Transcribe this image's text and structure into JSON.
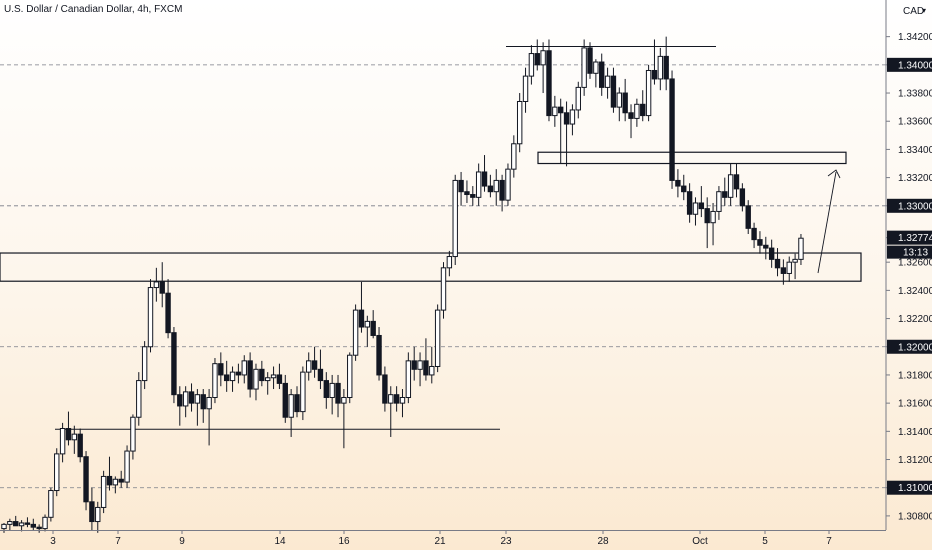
{
  "header": {
    "title": "U.S. Dollar / Canadian Dollar, 4h, FXCM",
    "currency": "CAD"
  },
  "colors": {
    "candle": "#131722",
    "grid": "#787b86",
    "axis_line": "#787b86",
    "label_box": "#131722",
    "label_text": "#ffffff",
    "axis_text": "#131722"
  },
  "chart_data": {
    "type": "candlestick",
    "price_axis_labels": [
      "1.34200",
      "1.34000",
      "1.33800",
      "1.33600",
      "1.33400",
      "1.33200",
      "1.33000",
      "1.32774",
      "1.32600",
      "1.32400",
      "1.32200",
      "1.32000",
      "1.31800",
      "1.31600",
      "1.31400",
      "1.31200",
      "1.31000",
      "1.30800"
    ],
    "highlighted_labels": [
      {
        "text": "1.34000",
        "value": 1.34
      },
      {
        "text": "1.33000",
        "value": 1.33
      },
      {
        "text": "1.32774",
        "value": 1.32774
      },
      {
        "text": "1.32000",
        "value": 1.32
      },
      {
        "text": "1.31000",
        "value": 1.31
      }
    ],
    "current_price": 1.32774,
    "countdown": "13:13",
    "dashed_levels": [
      1.34,
      1.33,
      1.32,
      1.31
    ],
    "date_ticks": [
      "3",
      "7",
      "9",
      "14",
      "16",
      "21",
      "23",
      "28",
      "Oct",
      "5",
      "7"
    ],
    "y_range": [
      1.307,
      1.3446
    ],
    "candles": [
      [
        1.3071,
        1.3075,
        1.3068,
        1.3074
      ],
      [
        1.3074,
        1.3078,
        1.307,
        1.3076
      ],
      [
        1.3076,
        1.308,
        1.3073,
        1.3073
      ],
      [
        1.3073,
        1.3077,
        1.3069,
        1.3075
      ],
      [
        1.3075,
        1.3079,
        1.3072,
        1.3074
      ],
      [
        1.3074,
        1.3078,
        1.307,
        1.3072
      ],
      [
        1.3072,
        1.3074,
        1.3068,
        1.3071
      ],
      [
        1.3071,
        1.3081,
        1.3069,
        1.3079
      ],
      [
        1.3079,
        1.31,
        1.3076,
        1.3098
      ],
      [
        1.3098,
        1.3128,
        1.3094,
        1.3124
      ],
      [
        1.3124,
        1.3146,
        1.3118,
        1.3142
      ],
      [
        1.3142,
        1.3154,
        1.313,
        1.3134
      ],
      [
        1.3134,
        1.3144,
        1.3124,
        1.3138
      ],
      [
        1.3138,
        1.3142,
        1.3118,
        1.3122
      ],
      [
        1.3122,
        1.3126,
        1.3084,
        1.309
      ],
      [
        1.309,
        1.31,
        1.307,
        1.3076
      ],
      [
        1.3076,
        1.309,
        1.3068,
        1.3086
      ],
      [
        1.3086,
        1.3112,
        1.3082,
        1.3108
      ],
      [
        1.3108,
        1.3122,
        1.3098,
        1.3102
      ],
      [
        1.3102,
        1.3108,
        1.3096,
        1.3106
      ],
      [
        1.3106,
        1.3112,
        1.31,
        1.3104
      ],
      [
        1.3104,
        1.313,
        1.31,
        1.3126
      ],
      [
        1.3126,
        1.3152,
        1.312,
        1.315
      ],
      [
        1.315,
        1.3182,
        1.3144,
        1.3176
      ],
      [
        1.3176,
        1.3204,
        1.317,
        1.32
      ],
      [
        1.32,
        1.3248,
        1.3196,
        1.3242
      ],
      [
        1.3242,
        1.3256,
        1.3232,
        1.3246
      ],
      [
        1.3246,
        1.326,
        1.3228,
        1.3238
      ],
      [
        1.3238,
        1.3248,
        1.3206,
        1.321
      ],
      [
        1.321,
        1.3214,
        1.316,
        1.3166
      ],
      [
        1.3166,
        1.3172,
        1.3144,
        1.3158
      ],
      [
        1.3158,
        1.3172,
        1.315,
        1.3168
      ],
      [
        1.3168,
        1.3174,
        1.3154,
        1.316
      ],
      [
        1.316,
        1.317,
        1.3144,
        1.3166
      ],
      [
        1.3166,
        1.317,
        1.3146,
        1.3156
      ],
      [
        1.3156,
        1.317,
        1.313,
        1.3164
      ],
      [
        1.3164,
        1.3192,
        1.316,
        1.3188
      ],
      [
        1.3188,
        1.3196,
        1.3172,
        1.318
      ],
      [
        1.318,
        1.319,
        1.3168,
        1.3176
      ],
      [
        1.3176,
        1.3186,
        1.3168,
        1.3182
      ],
      [
        1.3182,
        1.3188,
        1.3174,
        1.318
      ],
      [
        1.318,
        1.3194,
        1.3174,
        1.319
      ],
      [
        1.319,
        1.3196,
        1.3164,
        1.317
      ],
      [
        1.317,
        1.3188,
        1.3162,
        1.3184
      ],
      [
        1.3184,
        1.319,
        1.3172,
        1.3176
      ],
      [
        1.3176,
        1.3182,
        1.3166,
        1.3178
      ],
      [
        1.3178,
        1.3186,
        1.317,
        1.318
      ],
      [
        1.318,
        1.3188,
        1.317,
        1.3174
      ],
      [
        1.3174,
        1.318,
        1.3146,
        1.315
      ],
      [
        1.315,
        1.317,
        1.3136,
        1.3166
      ],
      [
        1.3166,
        1.3172,
        1.315,
        1.3154
      ],
      [
        1.3154,
        1.3186,
        1.3148,
        1.3182
      ],
      [
        1.3182,
        1.3196,
        1.3176,
        1.319
      ],
      [
        1.319,
        1.32,
        1.3178,
        1.3184
      ],
      [
        1.3184,
        1.3198,
        1.317,
        1.3176
      ],
      [
        1.3176,
        1.3182,
        1.3156,
        1.3164
      ],
      [
        1.3164,
        1.318,
        1.3152,
        1.3174
      ],
      [
        1.3174,
        1.318,
        1.315,
        1.316
      ],
      [
        1.316,
        1.317,
        1.3128,
        1.3164
      ],
      [
        1.3164,
        1.3196,
        1.316,
        1.3194
      ],
      [
        1.3194,
        1.323,
        1.319,
        1.3226
      ],
      [
        1.3226,
        1.3246,
        1.321,
        1.3214
      ],
      [
        1.3214,
        1.3222,
        1.32,
        1.3218
      ],
      [
        1.3218,
        1.3226,
        1.3206,
        1.3208
      ],
      [
        1.3208,
        1.3214,
        1.3176,
        1.318
      ],
      [
        1.318,
        1.3186,
        1.3154,
        1.316
      ],
      [
        1.316,
        1.3172,
        1.3136,
        1.3166
      ],
      [
        1.3166,
        1.3172,
        1.3154,
        1.316
      ],
      [
        1.316,
        1.317,
        1.315,
        1.3164
      ],
      [
        1.3164,
        1.3196,
        1.316,
        1.319
      ],
      [
        1.319,
        1.32,
        1.3176,
        1.3184
      ],
      [
        1.3184,
        1.3196,
        1.3172,
        1.319
      ],
      [
        1.319,
        1.3206,
        1.3176,
        1.318
      ],
      [
        1.318,
        1.32,
        1.3174,
        1.3186
      ],
      [
        1.3186,
        1.323,
        1.3182,
        1.3226
      ],
      [
        1.3226,
        1.326,
        1.322,
        1.3256
      ],
      [
        1.3256,
        1.3268,
        1.325,
        1.3264
      ],
      [
        1.3264,
        1.3322,
        1.3258,
        1.3318
      ],
      [
        1.3318,
        1.3324,
        1.33,
        1.331
      ],
      [
        1.331,
        1.3318,
        1.3302,
        1.3308
      ],
      [
        1.3308,
        1.3314,
        1.33,
        1.3306
      ],
      [
        1.3306,
        1.333,
        1.33,
        1.3324
      ],
      [
        1.3324,
        1.3336,
        1.331,
        1.3314
      ],
      [
        1.3314,
        1.3322,
        1.3306,
        1.331
      ],
      [
        1.331,
        1.3326,
        1.33,
        1.3318
      ],
      [
        1.3318,
        1.3322,
        1.3296,
        1.3304
      ],
      [
        1.3304,
        1.333,
        1.33,
        1.3326
      ],
      [
        1.3326,
        1.335,
        1.332,
        1.3344
      ],
      [
        1.3344,
        1.338,
        1.3338,
        1.3374
      ],
      [
        1.3374,
        1.3398,
        1.3366,
        1.3392
      ],
      [
        1.3392,
        1.3414,
        1.3386,
        1.3408
      ],
      [
        1.3408,
        1.3418,
        1.3396,
        1.34
      ],
      [
        1.34,
        1.3416,
        1.338,
        1.341
      ],
      [
        1.341,
        1.3418,
        1.336,
        1.3364
      ],
      [
        1.3364,
        1.3378,
        1.3356,
        1.337
      ],
      [
        1.337,
        1.3376,
        1.333,
        1.3366
      ],
      [
        1.3366,
        1.3374,
        1.3328,
        1.3358
      ],
      [
        1.3358,
        1.3372,
        1.335,
        1.3368
      ],
      [
        1.3368,
        1.3388,
        1.3362,
        1.3384
      ],
      [
        1.3384,
        1.3418,
        1.3378,
        1.3412
      ],
      [
        1.3412,
        1.3416,
        1.339,
        1.3394
      ],
      [
        1.3394,
        1.3404,
        1.3384,
        1.3402
      ],
      [
        1.3402,
        1.3408,
        1.3378,
        1.3384
      ],
      [
        1.3384,
        1.3398,
        1.3376,
        1.3392
      ],
      [
        1.3392,
        1.3398,
        1.3366,
        1.337
      ],
      [
        1.337,
        1.3384,
        1.336,
        1.338
      ],
      [
        1.338,
        1.339,
        1.336,
        1.3366
      ],
      [
        1.3366,
        1.3372,
        1.3348,
        1.3362
      ],
      [
        1.3362,
        1.3376,
        1.3356,
        1.3372
      ],
      [
        1.3372,
        1.3382,
        1.336,
        1.3364
      ],
      [
        1.3364,
        1.34,
        1.336,
        1.3396
      ],
      [
        1.3396,
        1.3418,
        1.3386,
        1.339
      ],
      [
        1.339,
        1.3412,
        1.3382,
        1.3406
      ],
      [
        1.3406,
        1.342,
        1.3382,
        1.339
      ],
      [
        1.339,
        1.3396,
        1.3312,
        1.3318
      ],
      [
        1.3318,
        1.3326,
        1.3306,
        1.3314
      ],
      [
        1.3314,
        1.3322,
        1.3304,
        1.331
      ],
      [
        1.331,
        1.3316,
        1.3288,
        1.3294
      ],
      [
        1.3294,
        1.3306,
        1.3286,
        1.3302
      ],
      [
        1.3302,
        1.3314,
        1.3292,
        1.3298
      ],
      [
        1.3298,
        1.3306,
        1.327,
        1.3288
      ],
      [
        1.3288,
        1.3302,
        1.3272,
        1.3296
      ],
      [
        1.3296,
        1.3314,
        1.329,
        1.331
      ],
      [
        1.331,
        1.332,
        1.33,
        1.3306
      ],
      [
        1.3306,
        1.333,
        1.33,
        1.3322
      ],
      [
        1.3322,
        1.333,
        1.3306,
        1.3312
      ],
      [
        1.3312,
        1.3316,
        1.3296,
        1.33
      ],
      [
        1.33,
        1.3304,
        1.328,
        1.3284
      ],
      [
        1.3284,
        1.3288,
        1.327,
        1.3276
      ],
      [
        1.3276,
        1.3282,
        1.3266,
        1.3272
      ],
      [
        1.3272,
        1.3278,
        1.3262,
        1.327
      ],
      [
        1.327,
        1.3276,
        1.3256,
        1.3262
      ],
      [
        1.3262,
        1.327,
        1.325,
        1.3256
      ],
      [
        1.3256,
        1.3262,
        1.3244,
        1.3252
      ],
      [
        1.3252,
        1.3264,
        1.3246,
        1.326
      ],
      [
        1.326,
        1.3266,
        1.3248,
        1.3262
      ],
      [
        1.3262,
        1.328,
        1.3258,
        1.3277
      ]
    ]
  }
}
